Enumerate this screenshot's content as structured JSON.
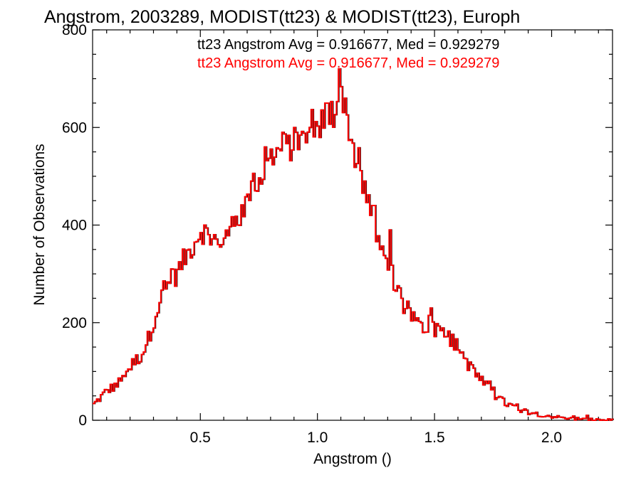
{
  "chart_data": {
    "type": "bar",
    "subtype": "step-histogram",
    "title": "Angstrom, 2003289, MODIST(tt23) & MODIST(tt23), Europh",
    "xlabel": "Angstrom ()",
    "ylabel": "Number of Observations",
    "xlim": [
      0.04,
      2.26
    ],
    "ylim": [
      0,
      800
    ],
    "x_ticks": [
      {
        "value": 0.5,
        "label": "0.5"
      },
      {
        "value": 1.0,
        "label": "1.0"
      },
      {
        "value": 1.5,
        "label": "1.5"
      },
      {
        "value": 2.0,
        "label": "2.0"
      }
    ],
    "y_ticks": [
      {
        "value": 0,
        "label": "0"
      },
      {
        "value": 200,
        "label": "200"
      },
      {
        "value": 400,
        "label": "400"
      },
      {
        "value": 600,
        "label": "600"
      },
      {
        "value": 800,
        "label": "800"
      }
    ],
    "x_minor_step": 0.1,
    "y_minor_step": 50,
    "grid": false,
    "annotations": [
      {
        "text": "tt23 Angstrom Avg = 0.916677, Med = 0.929279",
        "color": "#000000"
      },
      {
        "text": "tt23 Angstrom Avg = 0.916677, Med = 0.929279",
        "color": "#ff0000"
      }
    ],
    "series_color": "#ff0000",
    "series_black_color": "#000000",
    "anchors": [
      [
        0.04,
        30
      ],
      [
        0.07,
        45
      ],
      [
        0.1,
        60
      ],
      [
        0.15,
        75
      ],
      [
        0.2,
        110
      ],
      [
        0.25,
        135
      ],
      [
        0.28,
        170
      ],
      [
        0.31,
        220
      ],
      [
        0.35,
        270
      ],
      [
        0.4,
        300
      ],
      [
        0.43,
        330
      ],
      [
        0.47,
        360
      ],
      [
        0.5,
        390
      ],
      [
        0.55,
        370
      ],
      [
        0.6,
        375
      ],
      [
        0.65,
        400
      ],
      [
        0.7,
        450
      ],
      [
        0.75,
        490
      ],
      [
        0.8,
        530
      ],
      [
        0.85,
        560
      ],
      [
        0.9,
        560
      ],
      [
        0.95,
        580
      ],
      [
        1.0,
        600
      ],
      [
        1.05,
        625
      ],
      [
        1.08,
        645
      ],
      [
        1.1,
        680
      ],
      [
        1.13,
        610
      ],
      [
        1.17,
        520
      ],
      [
        1.2,
        470
      ],
      [
        1.25,
        380
      ],
      [
        1.3,
        300
      ],
      [
        1.35,
        250
      ],
      [
        1.4,
        215
      ],
      [
        1.45,
        195
      ],
      [
        1.5,
        195
      ],
      [
        1.55,
        175
      ],
      [
        1.6,
        150
      ],
      [
        1.65,
        110
      ],
      [
        1.7,
        80
      ],
      [
        1.75,
        55
      ],
      [
        1.8,
        35
      ],
      [
        1.85,
        25
      ],
      [
        1.9,
        17
      ],
      [
        1.95,
        12
      ],
      [
        2.0,
        8
      ],
      [
        2.05,
        5
      ],
      [
        2.1,
        3
      ],
      [
        2.15,
        1
      ],
      [
        2.26,
        0
      ]
    ],
    "spikes": [
      [
        0.38,
        310
      ],
      [
        0.52,
        400
      ],
      [
        0.58,
        360
      ],
      [
        0.66,
        400
      ],
      [
        0.72,
        490
      ],
      [
        0.78,
        560
      ],
      [
        0.85,
        590
      ],
      [
        0.91,
        590
      ],
      [
        0.97,
        600
      ],
      [
        1.04,
        650
      ],
      [
        1.095,
        720
      ],
      [
        1.12,
        660
      ],
      [
        1.2,
        490
      ],
      [
        1.24,
        440
      ],
      [
        1.31,
        390
      ],
      [
        1.36,
        250
      ],
      [
        1.48,
        215
      ],
      [
        1.72,
        80
      ],
      [
        2.15,
        10
      ]
    ],
    "bin_width": 0.00833
  }
}
